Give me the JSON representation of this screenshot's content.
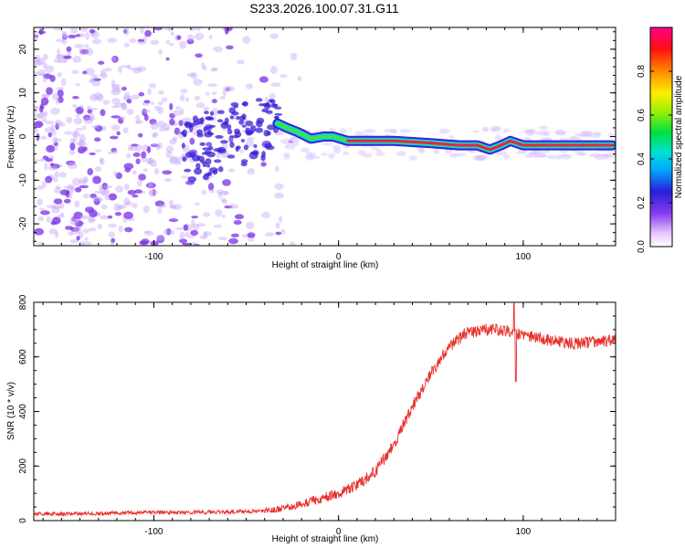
{
  "title": "S233.2026.100.07.31.G11",
  "colors": {
    "snr_line": "#e8302a",
    "scatter": "#7a2fe6",
    "ridge_outer": "#3a1fd6",
    "ridge_mid": "#00d6e0",
    "ridge_inner": "#3ee24a",
    "ridge_core": "#e8214a"
  },
  "chart_data": [
    {
      "type": "heatmap",
      "xlabel": "Height of straight line (km)",
      "ylabel": "Frequency (Hz)",
      "xlim": [
        -165,
        150
      ],
      "ylim": [
        -25,
        25
      ],
      "xticks": [
        "-100",
        "0",
        "100"
      ],
      "yticks": [
        "-20",
        "-10",
        "0",
        "10",
        "20"
      ],
      "colorbar": {
        "label": "Normalized spectral amplitude",
        "range": [
          0.0,
          1.0
        ],
        "ticks": [
          "0.0",
          "0.2",
          "0.4",
          "0.6",
          "0.8"
        ],
        "colormap": "rainbow (white-purple-blue-cyan-green-yellow-red-magenta)"
      },
      "ridge": {
        "x": [
          -33,
          -28,
          -22,
          -15,
          -8,
          -3,
          5,
          15,
          30,
          50,
          65,
          75,
          82,
          88,
          93,
          100,
          120,
          148
        ],
        "y": [
          3,
          2,
          1,
          -0.5,
          0,
          0,
          -1,
          -1,
          -1,
          -1.5,
          -2,
          -2,
          -3,
          -2,
          -1,
          -2,
          -2,
          -2
        ],
        "amplitude": [
          0.4,
          0.5,
          0.55,
          0.6,
          0.6,
          0.5,
          0.7,
          0.9,
          0.85,
          0.9,
          0.95,
          0.9,
          0.8,
          0.85,
          0.75,
          0.95,
          0.95,
          0.9
        ]
      }
    },
    {
      "type": "line",
      "xlabel": "Height of straight line (km)",
      "ylabel": "SNR (10 * v/v)",
      "xlim": [
        -165,
        150
      ],
      "ylim": [
        0,
        800
      ],
      "xticks": [
        "-100",
        "0",
        "100"
      ],
      "yticks": [
        "0",
        "200",
        "400",
        "600",
        "800"
      ],
      "series": [
        {
          "x": [
            -165,
            -140,
            -120,
            -100,
            -80,
            -60,
            -40,
            -30,
            -20,
            -10,
            0,
            10,
            20,
            30,
            40,
            50,
            60,
            70,
            80,
            90,
            95,
            100,
            110,
            120,
            130,
            140,
            150
          ],
          "values": [
            25,
            25,
            28,
            30,
            30,
            32,
            35,
            45,
            60,
            80,
            100,
            130,
            180,
            280,
            420,
            540,
            640,
            690,
            700,
            700,
            690,
            680,
            665,
            655,
            650,
            655,
            660
          ]
        }
      ],
      "annotations": [
        {
          "x": 95,
          "y": 800,
          "note": "spike"
        },
        {
          "x": 96,
          "y": 510,
          "note": "dip"
        }
      ]
    }
  ]
}
